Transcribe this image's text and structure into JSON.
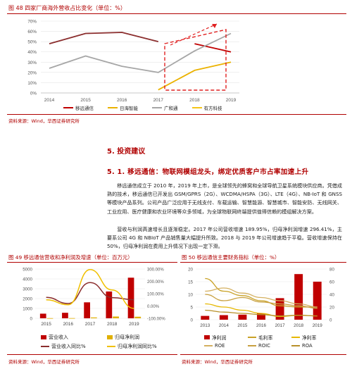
{
  "fig48": {
    "title": "图 48 四家厂商海外营收占比变化（单位：%）",
    "source": "资料来源：Wind，华西证券研究所",
    "chart_data": {
      "type": "line",
      "categories": [
        "2014",
        "2015",
        "2016",
        "2017",
        "2018",
        "2019"
      ],
      "ylim": [
        0,
        70
      ],
      "yticks": [
        "0%",
        "10%",
        "20%",
        "30%",
        "40%",
        "50%",
        "60%",
        "70%"
      ],
      "series": [
        {
          "name": "移远通信",
          "color": "#c00000",
          "values": [
            null,
            null,
            null,
            null,
            48,
            40
          ]
        },
        {
          "name": "日海智能",
          "color": "#ebb200",
          "values": [
            null,
            null,
            null,
            3,
            22,
            30
          ]
        },
        {
          "name": "广和通",
          "color": "#a6a6a6",
          "values": [
            24,
            36,
            26,
            20,
            41,
            58
          ]
        },
        {
          "name": "有方科技",
          "color": "#f5c518",
          "values": [
            null,
            null,
            null,
            null,
            null,
            null
          ]
        }
      ],
      "extra_lines": [
        {
          "color": "#8b2e2e",
          "values": [
            48,
            58,
            59,
            50,
            null,
            null
          ]
        }
      ]
    }
  },
  "section": {
    "h1": "5. 投资建议",
    "h2": "5. 1. 移远通信：物联网模组龙头，绑定优质客户市占率加速上升",
    "para1": "移远通信成立于 2010 年，2019 年上市，是全球领先的蜂窝和全球导航卫星系统模块供应商。凭借成熟的技术，移远通信已开发出 GSM/GPRS（2G）、WCDMA/HSPA（3G）、LTE（4G）、NB-IoT 和 GNSS 等模块产品系列。公司产品广泛应用于无线支付、车载运输、智慧能源、智慧城市、智能安防、无线网关、工业应用、医疗健康和农业环境等众多领域，为全球物联网终端提供值得信赖的模组解决方案。",
    "para2": "营收与利润高速增长且逐渐稳定。2017 年公司营收增速 189.95%，归母净利润增速 296.41%，主要系公司 4G 和 NBIoT 产品销售量大幅提升所致。2018 与 2019 年公司增速趋于平稳。营收增速保持在 50%，归母净利润在费用上升情况下出现一定下滑。"
  },
  "fig49": {
    "title": "图 49 移远通信营收和净利润及增速（单位：百万元）",
    "source": "资料来源：Wind，华西证券研究所",
    "chart_data": {
      "type": "bar",
      "categories": [
        "2015",
        "2016",
        "2017",
        "2018",
        "2019"
      ],
      "ylim_left": [
        0,
        5000
      ],
      "yticks_left": [
        "0",
        "1000",
        "2000",
        "3000",
        "4000",
        "5000"
      ],
      "ylim_right": [
        -100,
        300
      ],
      "yticks_right": [
        "-100.00%",
        "0.00%",
        "100.00%",
        "200.00%",
        "300.00%"
      ],
      "series": [
        {
          "name": "营业收入",
          "kind": "bar",
          "axis": "left",
          "color": "#c00000",
          "values": [
            470,
            560,
            1620,
            2720,
            4120
          ]
        },
        {
          "name": "归母净利润",
          "kind": "bar",
          "axis": "left",
          "color": "#e0b000",
          "values": [
            15,
            20,
            85,
            180,
            160
          ]
        },
        {
          "name": "营业收入同比%",
          "kind": "line",
          "axis": "right",
          "color": "#8b2e2e",
          "values": [
            70,
            20,
            190,
            68,
            51
          ]
        },
        {
          "name": "归母净利润同比%",
          "kind": "line",
          "axis": "right",
          "color": "#f0c000",
          "values": [
            50,
            10,
            296,
            130,
            -20
          ]
        }
      ]
    }
  },
  "fig50": {
    "title": "图 50 移远通信主要财务指标（单位：%）",
    "source": "资料来源：Wind，华西证券研究所",
    "chart_data": {
      "type": "bar",
      "categories": [
        "2013",
        "2014",
        "2015",
        "2016",
        "2017",
        "2018",
        "2019"
      ],
      "ylim_left": [
        0,
        20
      ],
      "yticks_left": [
        "0",
        "5",
        "10",
        "15",
        "20"
      ],
      "ylim_right": [
        0,
        80
      ],
      "yticks_right": [
        "0",
        "20",
        "40",
        "60",
        "80"
      ],
      "series": [
        {
          "name": "净利润",
          "kind": "bar",
          "axis": "left",
          "color": "#c00000",
          "values": [
            1.5,
            1.8,
            2.0,
            2.5,
            8.5,
            18.0,
            15.0
          ]
        },
        {
          "name": "毛利率",
          "kind": "line",
          "axis": "right",
          "color": "#c9a227",
          "values": [
            65,
            45,
            38,
            30,
            22,
            20,
            20
          ]
        },
        {
          "name": "净利率",
          "kind": "line",
          "axis": "right",
          "color": "#e6b800",
          "values": [
            25,
            20,
            15,
            10,
            5,
            7,
            6
          ]
        },
        {
          "name": "ROE",
          "kind": "line",
          "axis": "right",
          "color": "#d4b060",
          "values": [
            45,
            50,
            42,
            35,
            30,
            25,
            20
          ]
        },
        {
          "name": "ROIC",
          "kind": "line",
          "axis": "right",
          "color": "#c8a040",
          "values": [
            40,
            30,
            35,
            28,
            25,
            22,
            18
          ]
        },
        {
          "name": "ROA",
          "kind": "line",
          "axis": "right",
          "color": "#b8902a",
          "values": [
            15,
            12,
            10,
            8,
            6,
            7,
            6
          ]
        }
      ]
    }
  }
}
